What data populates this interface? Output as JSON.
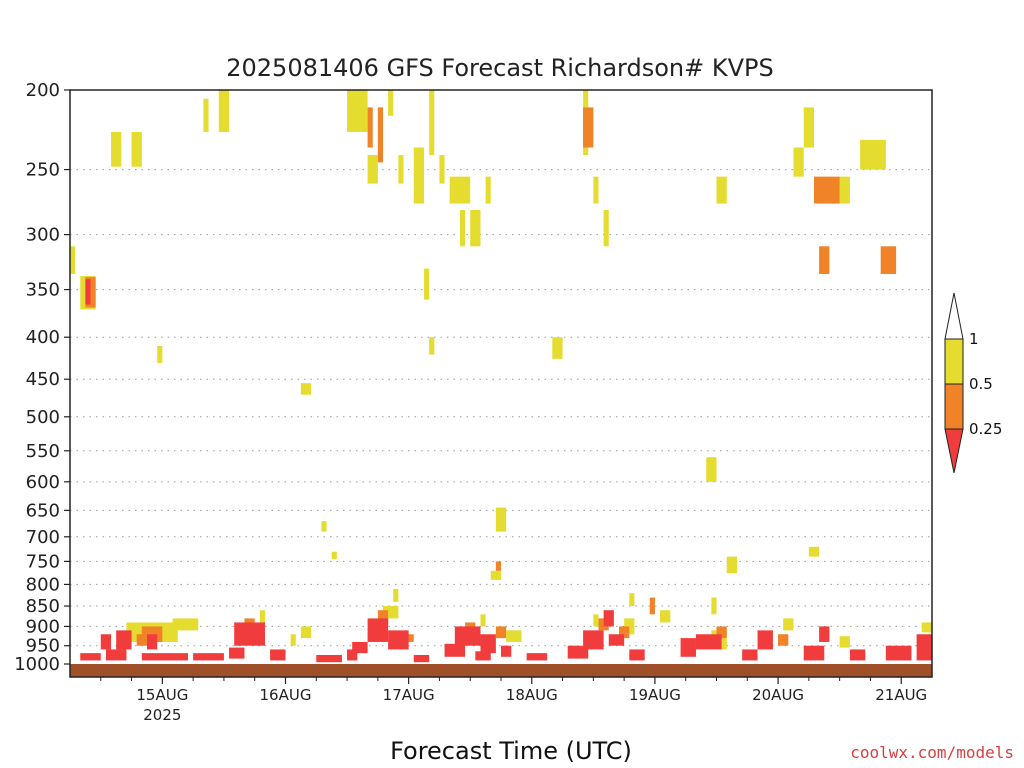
{
  "chart_data": {
    "type": "heatmap",
    "title": "2025081406 GFS Forecast Richardson# KVPS",
    "xlabel": "Forecast Time (UTC)",
    "ylabel": "",
    "y_axis": {
      "scale": "log",
      "inverted": true,
      "range": [
        1000,
        200
      ],
      "ticks": [
        "200",
        "250",
        "300",
        "350",
        "400",
        "450",
        "500",
        "550",
        "600",
        "650",
        "700",
        "750",
        "800",
        "850",
        "900",
        "950",
        "1000"
      ]
    },
    "x_axis": {
      "range_hours": [
        6,
        174
      ],
      "ticks": [
        {
          "label": "15AUG",
          "sub": "2025",
          "hour": 24
        },
        {
          "label": "16AUG",
          "sub": "",
          "hour": 48
        },
        {
          "label": "17AUG",
          "sub": "",
          "hour": 72
        },
        {
          "label": "18AUG",
          "sub": "",
          "hour": 96
        },
        {
          "label": "19AUG",
          "sub": "",
          "hour": 120
        },
        {
          "label": "20AUG",
          "sub": "",
          "hour": 144
        },
        {
          "label": "21AUG",
          "sub": "",
          "hour": 168
        }
      ]
    },
    "colorbar": {
      "levels": [
        "1",
        "0.5",
        "0.25"
      ],
      "colors": {
        "upper": "#ffffff",
        "mid_high": "#e5dc30",
        "mid_low": "#f08228",
        "lower": "#f03c3c"
      }
    },
    "categories_key": {
      "Y": "0.5-1",
      "O": "0.25-0.5",
      "R": "<0.25"
    },
    "cells": [
      [
        "Y",
        6,
        7,
        310,
        335
      ],
      [
        "R",
        9,
        10,
        340,
        365
      ],
      [
        "O",
        9,
        11,
        338,
        368
      ],
      [
        "Y",
        8,
        11,
        337,
        370
      ],
      [
        "Y",
        14,
        16,
        225,
        248
      ],
      [
        "Y",
        18,
        20,
        225,
        248
      ],
      [
        "Y",
        23,
        24,
        410,
        430
      ],
      [
        "Y",
        32,
        33,
        205,
        225
      ],
      [
        "Y",
        35,
        37,
        200,
        225
      ],
      [
        "Y",
        51,
        53,
        455,
        470
      ],
      [
        "Y",
        55,
        56,
        670,
        690
      ],
      [
        "Y",
        57,
        58,
        730,
        745
      ],
      [
        "Y",
        60,
        64,
        200,
        225
      ],
      [
        "O",
        64,
        65,
        210,
        235
      ],
      [
        "O",
        66,
        67,
        210,
        245
      ],
      [
        "Y",
        64,
        66,
        240,
        260
      ],
      [
        "Y",
        68,
        69,
        200,
        215
      ],
      [
        "Y",
        70,
        71,
        240,
        260
      ],
      [
        "Y",
        73,
        75,
        235,
        275
      ],
      [
        "Y",
        75,
        76,
        330,
        360
      ],
      [
        "Y",
        76,
        77,
        400,
        420
      ],
      [
        "Y",
        76,
        77,
        200,
        240
      ],
      [
        "Y",
        78,
        79,
        240,
        260
      ],
      [
        "Y",
        80,
        84,
        255,
        275
      ],
      [
        "Y",
        82,
        83,
        280,
        310
      ],
      [
        "Y",
        84,
        86,
        280,
        310
      ],
      [
        "Y",
        87,
        88,
        255,
        275
      ],
      [
        "Y",
        89,
        91,
        645,
        690
      ],
      [
        "O",
        89,
        90,
        750,
        770
      ],
      [
        "Y",
        88,
        90,
        770,
        790
      ],
      [
        "Y",
        100,
        102,
        400,
        425
      ],
      [
        "Y",
        106,
        107,
        200,
        240
      ],
      [
        "O",
        106,
        108,
        210,
        235
      ],
      [
        "Y",
        108,
        109,
        255,
        275
      ],
      [
        "Y",
        110,
        111,
        280,
        310
      ],
      [
        "Y",
        132,
        134,
        255,
        275
      ],
      [
        "Y",
        130,
        132,
        560,
        600
      ],
      [
        "Y",
        131,
        132,
        830,
        870
      ],
      [
        "Y",
        134,
        136,
        740,
        775
      ],
      [
        "Y",
        149,
        151,
        210,
        235
      ],
      [
        "Y",
        147,
        149,
        235,
        255
      ],
      [
        "O",
        151,
        156,
        255,
        275
      ],
      [
        "Y",
        156,
        158,
        255,
        275
      ],
      [
        "Y",
        150,
        152,
        720,
        740
      ],
      [
        "Y",
        160,
        165,
        230,
        250
      ],
      [
        "O",
        152,
        154,
        310,
        335
      ],
      [
        "O",
        164,
        167,
        310,
        335
      ],
      [
        "Y",
        17,
        27,
        890,
        940
      ],
      [
        "O",
        20,
        24,
        900,
        940
      ],
      [
        "Y",
        26,
        31,
        880,
        910
      ],
      [
        "R",
        12,
        14,
        920,
        960
      ],
      [
        "R",
        15,
        18,
        910,
        960
      ],
      [
        "R",
        21,
        23,
        920,
        960
      ],
      [
        "O",
        19,
        21,
        920,
        950
      ],
      [
        "R",
        8,
        12,
        970,
        990
      ],
      [
        "R",
        13,
        17,
        960,
        990
      ],
      [
        "R",
        20,
        29,
        970,
        990
      ],
      [
        "R",
        30,
        36,
        970,
        990
      ],
      [
        "R",
        38,
        44,
        890,
        950
      ],
      [
        "O",
        40,
        42,
        880,
        910
      ],
      [
        "R",
        37,
        40,
        955,
        985
      ],
      [
        "Y",
        43,
        44,
        860,
        890
      ],
      [
        "R",
        45,
        48,
        960,
        990
      ],
      [
        "Y",
        49,
        50,
        920,
        950
      ],
      [
        "Y",
        51,
        53,
        900,
        930
      ],
      [
        "R",
        54,
        59,
        975,
        995
      ],
      [
        "R",
        60,
        62,
        960,
        990
      ],
      [
        "R",
        64,
        68,
        880,
        940
      ],
      [
        "O",
        66,
        68,
        860,
        900
      ],
      [
        "Y",
        67,
        70,
        850,
        880
      ],
      [
        "R",
        68,
        72,
        910,
        960
      ],
      [
        "O",
        71,
        73,
        920,
        940
      ],
      [
        "R",
        61,
        64,
        940,
        970
      ],
      [
        "Y",
        69,
        70,
        810,
        840
      ],
      [
        "R",
        73,
        76,
        975,
        995
      ],
      [
        "R",
        79,
        83,
        945,
        980
      ],
      [
        "R",
        81,
        86,
        900,
        950
      ],
      [
        "O",
        83,
        85,
        890,
        920
      ],
      [
        "Y",
        86,
        87,
        870,
        900
      ],
      [
        "R",
        86,
        89,
        920,
        970
      ],
      [
        "O",
        89,
        91,
        900,
        930
      ],
      [
        "Y",
        91,
        94,
        910,
        940
      ],
      [
        "R",
        85,
        88,
        965,
        990
      ],
      [
        "R",
        90,
        92,
        950,
        980
      ],
      [
        "R",
        95,
        99,
        970,
        990
      ],
      [
        "R",
        103,
        107,
        950,
        985
      ],
      [
        "R",
        106,
        110,
        910,
        960
      ],
      [
        "O",
        109,
        111,
        880,
        910
      ],
      [
        "R",
        110,
        112,
        860,
        900
      ],
      [
        "Y",
        108,
        109,
        870,
        900
      ],
      [
        "R",
        111,
        114,
        920,
        950
      ],
      [
        "O",
        113,
        115,
        900,
        930
      ],
      [
        "Y",
        114,
        116,
        880,
        920
      ],
      [
        "R",
        115,
        118,
        960,
        990
      ],
      [
        "O",
        119,
        120,
        830,
        870
      ],
      [
        "Y",
        121,
        123,
        860,
        890
      ],
      [
        "Y",
        115,
        116,
        820,
        850
      ],
      [
        "R",
        125,
        128,
        930,
        980
      ],
      [
        "R",
        128,
        133,
        920,
        960
      ],
      [
        "Y",
        131,
        134,
        910,
        960
      ],
      [
        "O",
        132,
        134,
        900,
        930
      ],
      [
        "R",
        137,
        140,
        960,
        990
      ],
      [
        "R",
        140,
        143,
        910,
        960
      ],
      [
        "O",
        144,
        146,
        920,
        950
      ],
      [
        "Y",
        145,
        147,
        880,
        910
      ],
      [
        "R",
        149,
        153,
        950,
        990
      ],
      [
        "R",
        152,
        154,
        900,
        940
      ],
      [
        "Y",
        156,
        158,
        925,
        955
      ],
      [
        "R",
        158,
        161,
        960,
        990
      ],
      [
        "R",
        165,
        170,
        950,
        990
      ],
      [
        "R",
        171,
        174,
        920,
        990
      ],
      [
        "Y",
        172,
        174,
        890,
        915
      ]
    ],
    "surface": {
      "color": "#a05028",
      "top_hPa": 1003
    }
  },
  "footer": {
    "credit": "coolwx.com/models"
  }
}
